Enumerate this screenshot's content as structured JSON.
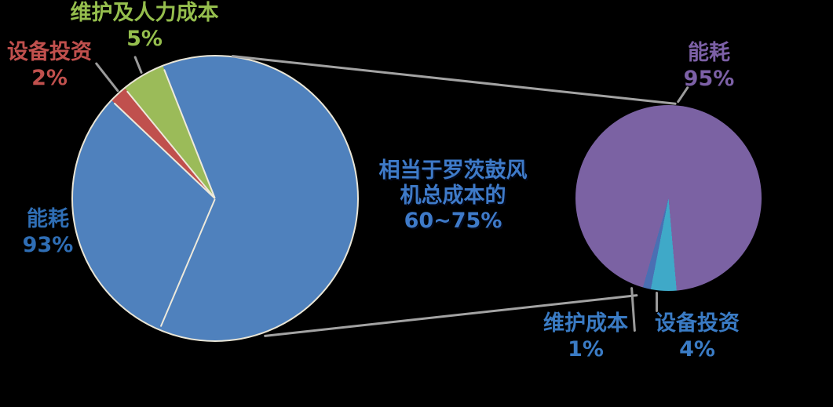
{
  "background_color": "#000000",
  "connector_color": "#A3A3A3",
  "leader_color": "#9B9B9B",
  "center_note": {
    "line1": "相当于罗茨鼓风",
    "line2": "机总成本的",
    "line3": "60~75%",
    "color": "#3E7AC8"
  },
  "chart_data": [
    {
      "type": "pie",
      "legend_position": "callout-labels",
      "rotation": 313.5,
      "ring_color": "#E9E5D6",
      "divider_color": "#EDE9DB",
      "divider_angles": [
        203,
        313.5,
        320.7,
        338.5
      ],
      "slices": [
        {
          "label": "设备投资",
          "value": 2,
          "pct_label": "2%",
          "deg": 7.2,
          "color": "#C0504D",
          "label_color": "#C0504D"
        },
        {
          "label": "维护及人力成本",
          "value": 5,
          "pct_label": "5%",
          "deg": 17.8,
          "color": "#9BBB59",
          "label_color": "#95BE4D"
        },
        {
          "label": "能耗",
          "value": 93,
          "pct_label": "93%",
          "deg": 335.0,
          "color": "#4F81BD",
          "label_color": "#2F6EB5"
        }
      ]
    },
    {
      "type": "pie",
      "legend_position": "callout-labels",
      "rotation": 175,
      "divider_angles": [],
      "slices": [
        {
          "label": "设备投资",
          "value": 4,
          "pct_label": "4%",
          "deg": 16,
          "color": "#3FA9C8",
          "label_color": "#3A7BC4"
        },
        {
          "label": "维护成本",
          "value": 1,
          "pct_label": "1%",
          "deg": 5,
          "color": "#4A6FB3",
          "label_color": "#3A7BC4"
        },
        {
          "label": "能耗",
          "value": 95,
          "pct_label": "95%",
          "deg": 339,
          "color": "#7B62A3",
          "label_color": "#7C60A6"
        }
      ]
    }
  ]
}
